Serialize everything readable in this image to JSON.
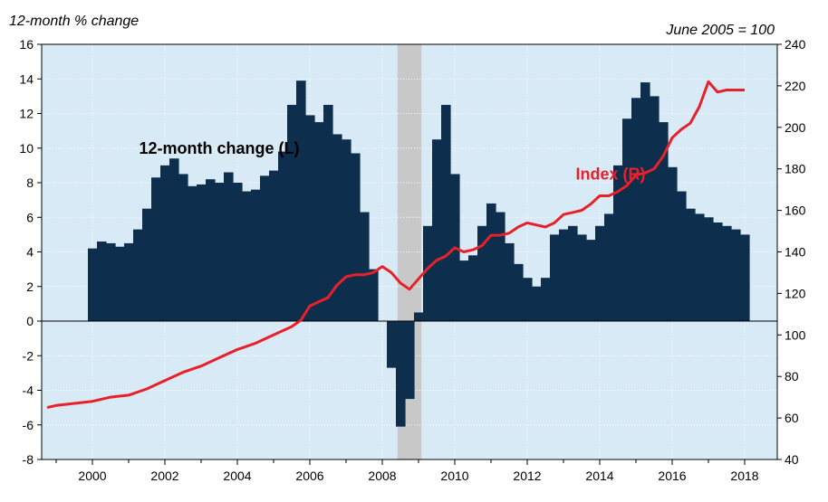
{
  "chart_data": {
    "type": "bar",
    "title": "",
    "left_axis_title": "12-month % change",
    "right_axis_title": "June 2005 = 100",
    "xlim": [
      1998.6,
      2018.9
    ],
    "ylim_left": [
      -8,
      16
    ],
    "ylim_right": [
      40,
      240
    ],
    "left_ticks": [
      "16",
      "14",
      "12",
      "10",
      "8",
      "6",
      "4",
      "2",
      "0",
      "-2",
      "-4",
      "-6",
      "-8"
    ],
    "right_ticks": [
      "240",
      "220",
      "200",
      "180",
      "160",
      "140",
      "120",
      "100",
      "80",
      "60",
      "40"
    ],
    "x_ticks": [
      "2000",
      "2002",
      "2004",
      "2006",
      "2008",
      "2010",
      "2012",
      "2014",
      "2016",
      "2018"
    ],
    "recession": {
      "start": 2008.42,
      "end": 2009.08
    },
    "grid": true,
    "legend": "none",
    "colors": {
      "plot_background": "#d9eaf7",
      "grid": "#ffffff",
      "bars": "#0e2e4e",
      "index_line": "#e8202a",
      "recession_band": "#c8c8c8"
    },
    "series": [
      {
        "name": "12-month change (L)",
        "type": "bar",
        "axis": "left",
        "x": [
          2000.0,
          2000.25,
          2000.5,
          2000.75,
          2001.0,
          2001.25,
          2001.5,
          2001.75,
          2002.0,
          2002.25,
          2002.5,
          2002.75,
          2003.0,
          2003.25,
          2003.5,
          2003.75,
          2004.0,
          2004.25,
          2004.5,
          2004.75,
          2005.0,
          2005.25,
          2005.5,
          2005.75,
          2006.0,
          2006.25,
          2006.5,
          2006.75,
          2007.0,
          2007.25,
          2007.5,
          2007.75,
          2008.0,
          2008.25,
          2008.5,
          2008.75,
          2009.0,
          2009.25,
          2009.5,
          2009.75,
          2010.0,
          2010.25,
          2010.5,
          2010.75,
          2011.0,
          2011.25,
          2011.5,
          2011.75,
          2012.0,
          2012.25,
          2012.5,
          2012.75,
          2013.0,
          2013.25,
          2013.5,
          2013.75,
          2014.0,
          2014.25,
          2014.5,
          2014.75,
          2015.0,
          2015.25,
          2015.5,
          2015.75,
          2016.0,
          2016.25,
          2016.5,
          2016.75,
          2017.0,
          2017.25,
          2017.5,
          2017.75,
          2018.0
        ],
        "values": [
          4.2,
          4.6,
          4.5,
          4.3,
          4.5,
          5.3,
          6.5,
          8.3,
          9.0,
          9.4,
          8.5,
          7.8,
          7.9,
          8.2,
          8.0,
          8.6,
          8.0,
          7.5,
          7.6,
          8.4,
          8.7,
          9.8,
          12.5,
          13.9,
          11.9,
          11.5,
          12.5,
          10.8,
          10.5,
          9.7,
          6.3,
          3.0,
          0.0,
          -2.7,
          -6.1,
          -4.5,
          0.5,
          5.5,
          10.5,
          12.5,
          8.5,
          3.5,
          3.8,
          5.5,
          6.8,
          6.3,
          4.5,
          3.3,
          2.5,
          2.0,
          2.5,
          5.0,
          5.3,
          5.5,
          5.0,
          4.7,
          5.5,
          6.2,
          9.0,
          11.7,
          12.9,
          13.8,
          13.0,
          11.5,
          8.9,
          7.5,
          6.5,
          6.2,
          6.0,
          5.7,
          5.5,
          5.3,
          5.0
        ]
      },
      {
        "name": "Index (R)",
        "type": "line",
        "axis": "right",
        "x": [
          1998.75,
          1999.0,
          1999.5,
          2000.0,
          2000.5,
          2001.0,
          2001.5,
          2002.0,
          2002.5,
          2003.0,
          2003.5,
          2004.0,
          2004.5,
          2005.0,
          2005.5,
          2005.75,
          2006.0,
          2006.25,
          2006.5,
          2006.75,
          2007.0,
          2007.25,
          2007.5,
          2007.75,
          2008.0,
          2008.25,
          2008.5,
          2008.75,
          2009.0,
          2009.25,
          2009.5,
          2009.75,
          2010.0,
          2010.25,
          2010.5,
          2010.75,
          2011.0,
          2011.25,
          2011.5,
          2011.75,
          2012.0,
          2012.25,
          2012.5,
          2012.75,
          2013.0,
          2013.25,
          2013.5,
          2013.75,
          2014.0,
          2014.25,
          2014.5,
          2014.75,
          2015.0,
          2015.25,
          2015.5,
          2015.75,
          2016.0,
          2016.25,
          2016.5,
          2016.75,
          2017.0,
          2017.25,
          2017.5,
          2017.75,
          2018.0
        ],
        "values": [
          65,
          66,
          67,
          68,
          70,
          71,
          74,
          78,
          82,
          85,
          89,
          93,
          96,
          100,
          104,
          107,
          114,
          116,
          118,
          124,
          128,
          129,
          129,
          130,
          133,
          130,
          125,
          122,
          127,
          132,
          136,
          138,
          142,
          140,
          141,
          143,
          148,
          148,
          149,
          152,
          154,
          153,
          152,
          154,
          158,
          159,
          160,
          163,
          167,
          167,
          169,
          172,
          177,
          178,
          180,
          186,
          195,
          199,
          202,
          210,
          222,
          217,
          218,
          218,
          218
        ]
      }
    ],
    "annotations": [
      {
        "text": "12-month change (L)",
        "x": 2003.5,
        "y_left": 10.0,
        "color": "#000000"
      },
      {
        "text": "Index (R)",
        "x": 2014.3,
        "y_left": 8.5,
        "color": "#e8202a"
      }
    ]
  }
}
